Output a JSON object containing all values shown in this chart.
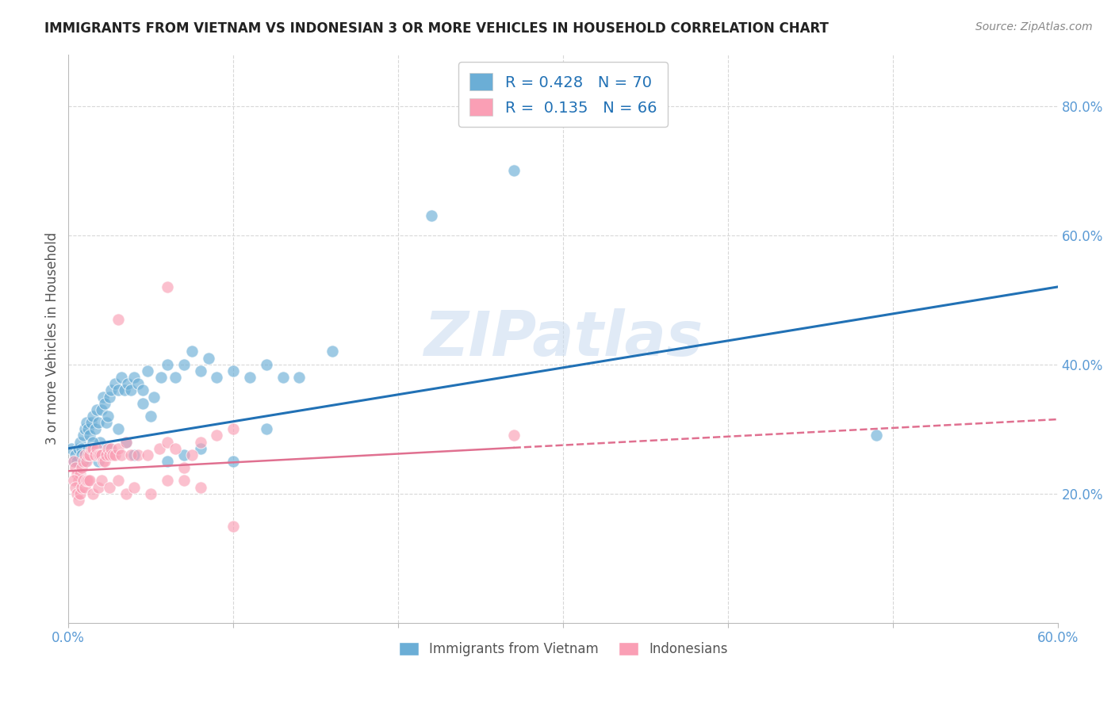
{
  "title": "IMMIGRANTS FROM VIETNAM VS INDONESIAN 3 OR MORE VEHICLES IN HOUSEHOLD CORRELATION CHART",
  "source": "Source: ZipAtlas.com",
  "ylabel": "3 or more Vehicles in Household",
  "xlim": [
    0.0,
    0.6
  ],
  "ylim": [
    0.0,
    0.88
  ],
  "xtick_vals": [
    0.0,
    0.1,
    0.2,
    0.3,
    0.4,
    0.5,
    0.6
  ],
  "ytick_right_labels": [
    "20.0%",
    "40.0%",
    "60.0%",
    "80.0%"
  ],
  "ytick_right_vals": [
    0.2,
    0.4,
    0.6,
    0.8
  ],
  "vietnam_color": "#6baed6",
  "indonesia_color": "#fa9fb5",
  "vietnam_line_color": "#2171b5",
  "indonesia_line_color": "#e07090",
  "watermark": "ZIPatlas",
  "background_color": "#ffffff",
  "grid_color": "#d8d8d8",
  "vietnam_line_start": 0.27,
  "vietnam_line_end": 0.52,
  "indonesia_line_start": 0.235,
  "indonesia_line_end": 0.315,
  "vietnam_scatter_x": [
    0.002,
    0.003,
    0.004,
    0.005,
    0.006,
    0.007,
    0.008,
    0.009,
    0.01,
    0.011,
    0.012,
    0.013,
    0.014,
    0.015,
    0.016,
    0.017,
    0.018,
    0.019,
    0.02,
    0.021,
    0.022,
    0.023,
    0.024,
    0.025,
    0.026,
    0.028,
    0.03,
    0.032,
    0.034,
    0.036,
    0.038,
    0.04,
    0.042,
    0.045,
    0.048,
    0.052,
    0.056,
    0.06,
    0.065,
    0.07,
    0.075,
    0.08,
    0.085,
    0.09,
    0.1,
    0.11,
    0.12,
    0.13,
    0.14,
    0.16,
    0.008,
    0.01,
    0.012,
    0.015,
    0.018,
    0.02,
    0.025,
    0.03,
    0.035,
    0.04,
    0.045,
    0.05,
    0.06,
    0.07,
    0.08,
    0.1,
    0.12,
    0.22,
    0.27,
    0.49
  ],
  "vietnam_scatter_y": [
    0.27,
    0.25,
    0.26,
    0.25,
    0.27,
    0.28,
    0.27,
    0.29,
    0.3,
    0.31,
    0.3,
    0.29,
    0.31,
    0.32,
    0.3,
    0.33,
    0.31,
    0.28,
    0.33,
    0.35,
    0.34,
    0.31,
    0.32,
    0.35,
    0.36,
    0.37,
    0.36,
    0.38,
    0.36,
    0.37,
    0.36,
    0.38,
    0.37,
    0.36,
    0.39,
    0.35,
    0.38,
    0.4,
    0.38,
    0.4,
    0.42,
    0.39,
    0.41,
    0.38,
    0.39,
    0.38,
    0.4,
    0.38,
    0.38,
    0.42,
    0.26,
    0.25,
    0.27,
    0.28,
    0.25,
    0.26,
    0.27,
    0.3,
    0.28,
    0.26,
    0.34,
    0.32,
    0.25,
    0.26,
    0.27,
    0.25,
    0.3,
    0.63,
    0.7,
    0.29
  ],
  "indonesia_scatter_x": [
    0.003,
    0.004,
    0.005,
    0.006,
    0.007,
    0.008,
    0.009,
    0.01,
    0.011,
    0.012,
    0.013,
    0.014,
    0.015,
    0.016,
    0.017,
    0.018,
    0.019,
    0.02,
    0.021,
    0.022,
    0.023,
    0.024,
    0.025,
    0.026,
    0.027,
    0.028,
    0.03,
    0.032,
    0.035,
    0.038,
    0.042,
    0.048,
    0.055,
    0.06,
    0.065,
    0.07,
    0.075,
    0.08,
    0.09,
    0.1,
    0.003,
    0.004,
    0.005,
    0.006,
    0.007,
    0.008,
    0.009,
    0.01,
    0.011,
    0.012,
    0.013,
    0.015,
    0.018,
    0.02,
    0.025,
    0.03,
    0.035,
    0.04,
    0.05,
    0.06,
    0.07,
    0.08,
    0.1,
    0.27,
    0.03,
    0.06
  ],
  "indonesia_scatter_y": [
    0.25,
    0.24,
    0.23,
    0.22,
    0.23,
    0.24,
    0.25,
    0.26,
    0.25,
    0.26,
    0.26,
    0.27,
    0.27,
    0.26,
    0.27,
    0.26,
    0.26,
    0.26,
    0.25,
    0.25,
    0.26,
    0.27,
    0.26,
    0.27,
    0.26,
    0.26,
    0.27,
    0.26,
    0.28,
    0.26,
    0.26,
    0.26,
    0.27,
    0.28,
    0.27,
    0.24,
    0.26,
    0.28,
    0.29,
    0.3,
    0.22,
    0.21,
    0.2,
    0.19,
    0.2,
    0.21,
    0.22,
    0.21,
    0.22,
    0.22,
    0.22,
    0.2,
    0.21,
    0.22,
    0.21,
    0.22,
    0.2,
    0.21,
    0.2,
    0.22,
    0.22,
    0.21,
    0.15,
    0.29,
    0.47,
    0.52
  ]
}
